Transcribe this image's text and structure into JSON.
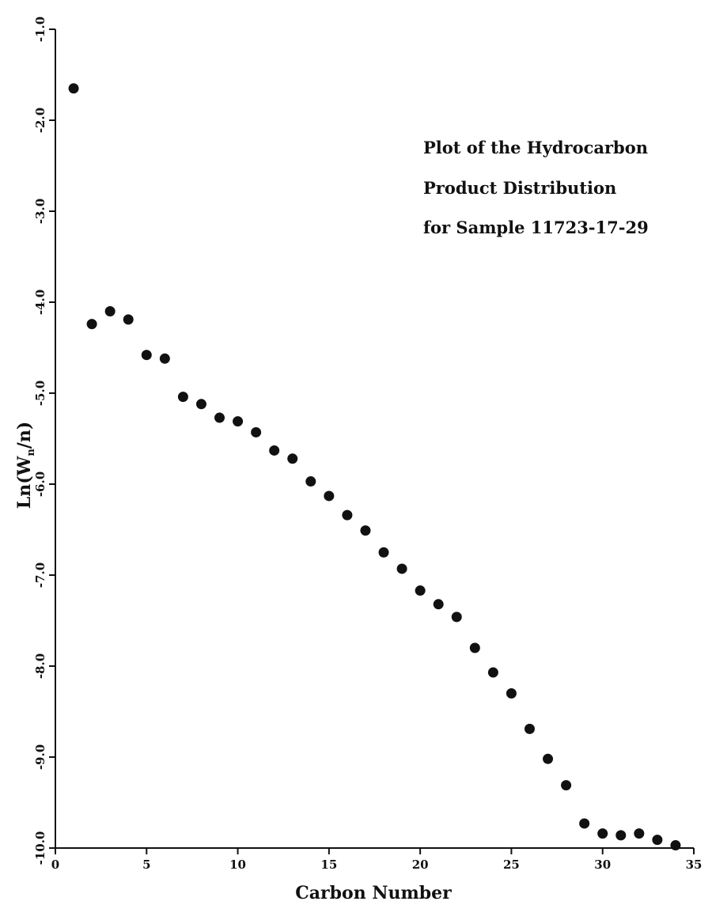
{
  "chart_data": {
    "type": "scatter",
    "title_lines": [
      "Plot of the Hydrocarbon",
      "Product Distribution",
      "for Sample 11723-17-29"
    ],
    "xlabel": "Carbon Number",
    "ylabel_main": "Ln(W",
    "ylabel_sub": "n",
    "ylabel_tail": "/n)",
    "xlim": [
      0,
      35
    ],
    "ylim": [
      -10.0,
      -1.0
    ],
    "x_ticks": [
      0,
      5,
      10,
      15,
      20,
      25,
      30,
      35
    ],
    "x_tick_labels": [
      "0",
      "5",
      "10",
      "15",
      "20",
      "25",
      "30",
      "35"
    ],
    "y_ticks": [
      -1.0,
      -2.0,
      -3.0,
      -4.0,
      -5.0,
      -6.0,
      -7.0,
      -8.0,
      -9.0,
      -10.0
    ],
    "y_tick_labels": [
      "-1.0",
      "-2.0",
      "-3.0",
      "-4.0",
      "-5.0",
      "-6.0",
      "-7.0",
      "-8.0",
      "-9.0",
      "-10.0"
    ],
    "grid": false,
    "points": [
      {
        "x": 1,
        "y": -1.65
      },
      {
        "x": 2,
        "y": -4.24
      },
      {
        "x": 3,
        "y": -4.1
      },
      {
        "x": 4,
        "y": -4.19
      },
      {
        "x": 5,
        "y": -4.58
      },
      {
        "x": 6,
        "y": -4.62
      },
      {
        "x": 7,
        "y": -5.04
      },
      {
        "x": 8,
        "y": -5.12
      },
      {
        "x": 9,
        "y": -5.27
      },
      {
        "x": 10,
        "y": -5.31
      },
      {
        "x": 11,
        "y": -5.43
      },
      {
        "x": 12,
        "y": -5.63
      },
      {
        "x": 13,
        "y": -5.72
      },
      {
        "x": 14,
        "y": -5.97
      },
      {
        "x": 15,
        "y": -6.13
      },
      {
        "x": 16,
        "y": -6.34
      },
      {
        "x": 17,
        "y": -6.51
      },
      {
        "x": 18,
        "y": -6.75
      },
      {
        "x": 19,
        "y": -6.93
      },
      {
        "x": 20,
        "y": -7.17
      },
      {
        "x": 21,
        "y": -7.32
      },
      {
        "x": 22,
        "y": -7.46
      },
      {
        "x": 23,
        "y": -7.8
      },
      {
        "x": 24,
        "y": -8.07
      },
      {
        "x": 25,
        "y": -8.3
      },
      {
        "x": 26,
        "y": -8.69
      },
      {
        "x": 27,
        "y": -9.02
      },
      {
        "x": 28,
        "y": -9.31
      },
      {
        "x": 29,
        "y": -9.73
      },
      {
        "x": 30,
        "y": -9.84
      },
      {
        "x": 31,
        "y": -9.86
      },
      {
        "x": 32,
        "y": -9.84
      },
      {
        "x": 33,
        "y": -9.91
      },
      {
        "x": 34,
        "y": -9.97
      }
    ]
  }
}
